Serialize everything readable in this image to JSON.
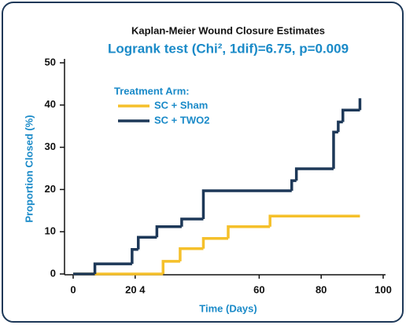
{
  "chart_data": {
    "type": "line",
    "step": "post",
    "title": "Kaplan-Meier Wound Closure Estimates",
    "subtitle": "Logrank test (Chi², 1dif)=6.75, p=0.009",
    "x_label": "Time (Days)",
    "y_label": "Proportion Closed (%)",
    "legend_title": "Treatment Arm:",
    "xlim": [
      0,
      100
    ],
    "ylim": [
      0,
      50
    ],
    "xticks": [
      0,
      {
        "value": 20,
        "label": "20 4"
      },
      60,
      80,
      100
    ],
    "yticks": [
      0,
      10,
      20,
      30,
      40,
      50
    ],
    "series": [
      {
        "name": "SC + Sham",
        "color": "#f5c02a",
        "x": [
          0,
          29,
          34.5,
          42,
          50,
          63.5,
          92.5
        ],
        "values": [
          0,
          3,
          6,
          8.4,
          11.2,
          13.7,
          13.7
        ]
      },
      {
        "name": "SC + TWO2",
        "color": "#1d3858",
        "x": [
          0,
          7,
          19,
          21,
          27,
          35,
          42,
          70.5,
          72,
          84,
          85.5,
          87,
          92.5
        ],
        "values": [
          0,
          2.4,
          5.8,
          8.7,
          11.2,
          13,
          19.7,
          22.1,
          24.9,
          33.6,
          36,
          38.8,
          41.6
        ]
      }
    ]
  }
}
